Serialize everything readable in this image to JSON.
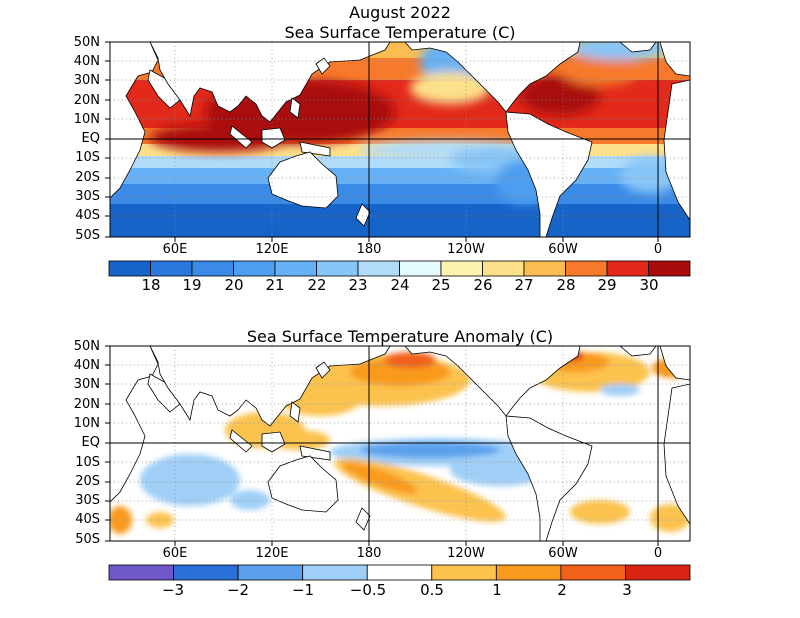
{
  "header": {
    "title_line1": "August 2022",
    "title_line2": "Sea Surface Temperature (C)"
  },
  "top_map": {
    "lat_labels": [
      "50N",
      "40N",
      "30N",
      "20N",
      "10N",
      "EQ",
      "10S",
      "20S",
      "30S",
      "40S",
      "50S"
    ],
    "lon_labels": [
      "60E",
      "120E",
      "180",
      "120W",
      "60W",
      "0"
    ],
    "colorbar": {
      "colors": [
        "#1764c8",
        "#2a78df",
        "#3a8be8",
        "#4d9df0",
        "#66b1f5",
        "#88c6f7",
        "#b0dcfa",
        "#e6fbfc",
        "#fdf3b1",
        "#fde08a",
        "#fbbd52",
        "#f7792b",
        "#e2291a",
        "#aa0c0c"
      ],
      "tick_labels": [
        "18",
        "19",
        "20",
        "21",
        "22",
        "23",
        "24",
        "25",
        "26",
        "27",
        "28",
        "29",
        "30"
      ]
    }
  },
  "bottom_map": {
    "title": "Sea Surface Temperature Anomaly (C)",
    "lat_labels": [
      "50N",
      "40N",
      "30N",
      "20N",
      "10N",
      "EQ",
      "10S",
      "20S",
      "30S",
      "40S",
      "50S"
    ],
    "lon_labels": [
      "60E",
      "120E",
      "180",
      "120W",
      "60W",
      "0"
    ],
    "colorbar": {
      "colors": [
        "#6f57c9",
        "#2b6fd8",
        "#5aa0ec",
        "#9fcff7",
        "#ffffff",
        "#fbc24e",
        "#f99a1f",
        "#f2611a",
        "#d92414"
      ],
      "tick_labels": [
        "−3",
        "−2",
        "−1",
        "−0.5",
        "0.5",
        "1",
        "2",
        "3"
      ]
    }
  }
}
